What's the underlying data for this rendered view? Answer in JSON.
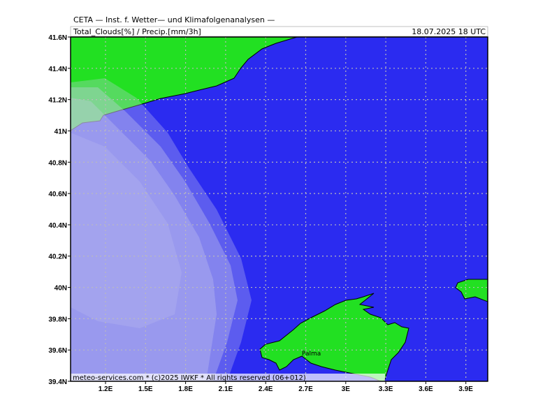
{
  "header": {
    "title": "CETA — Inst. f. Wetter— und Klimafolgenanalysen —",
    "parameter": "Total_Clouds[%] / Precip.[mm/3h]",
    "valid_time": "18.07.2025 18 UTC"
  },
  "map": {
    "lat_labels": [
      "41.6N",
      "41.4N",
      "41.2N",
      "41N",
      "40.8N",
      "40.6N",
      "40.4N",
      "40.2N",
      "40N",
      "39.8N",
      "39.6N",
      "39.4N"
    ],
    "lon_labels": [
      "1.2E",
      "1.5E",
      "1.8E",
      "2.1E",
      "2.4E",
      "2.7E",
      "3E",
      "3.3E",
      "3.6E",
      "3.9E"
    ],
    "places": [
      {
        "label": "Palma"
      }
    ]
  },
  "footer": {
    "credit": "meteo-services.com * (c)2025 IWKF * All rights reserved (06+012)"
  }
}
